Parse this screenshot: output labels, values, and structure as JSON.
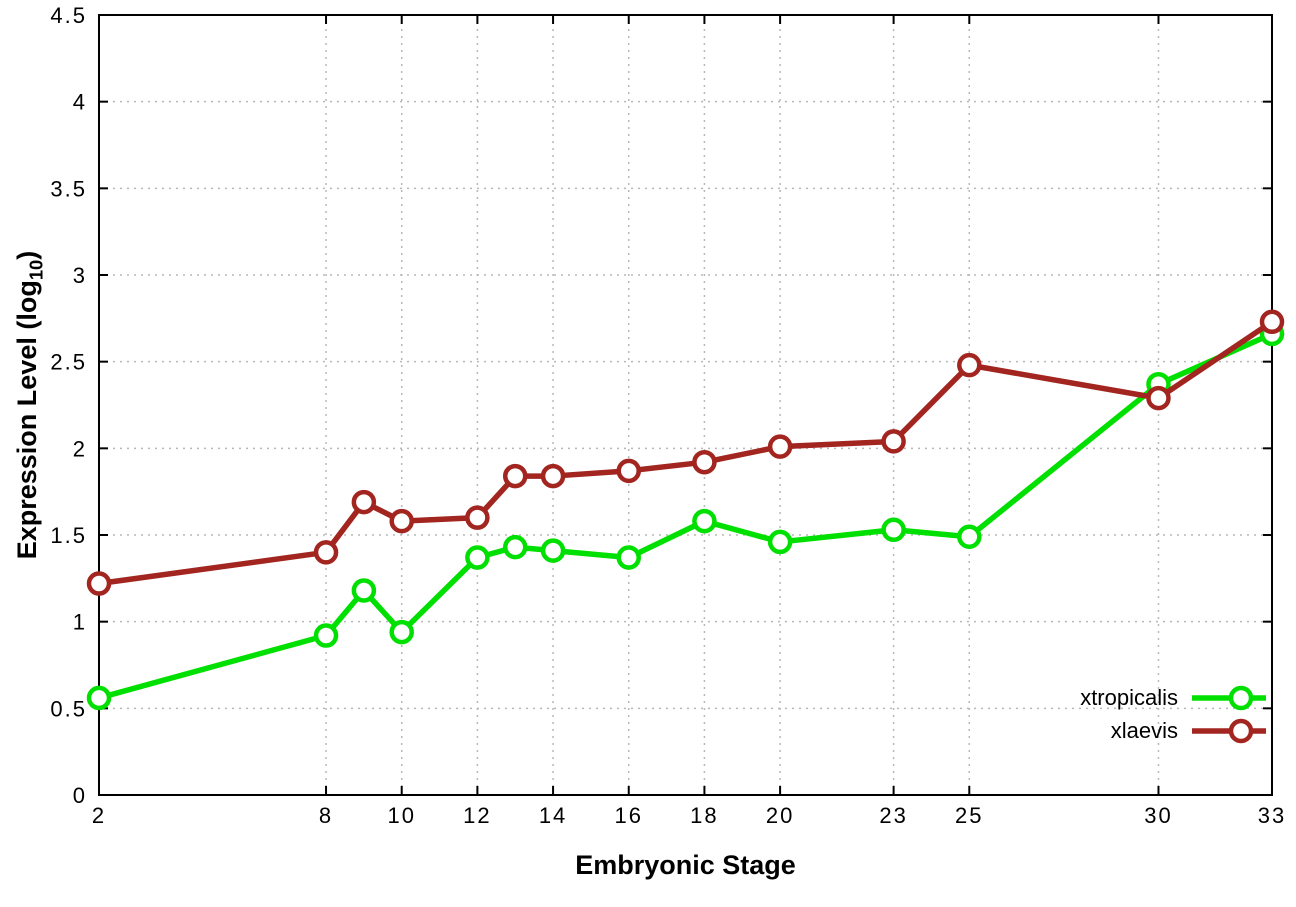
{
  "figure": {
    "background": "#ffffff",
    "border_color": "#000000",
    "grid_color": "#b8b8b8"
  },
  "chart_data": {
    "type": "line",
    "title": "",
    "xlabel": "Embryonic Stage",
    "ylabel": "Expression Level (log10)",
    "ylabel_parts": {
      "prefix": "Expression Level (log",
      "sub": "10",
      "suffix": ")"
    },
    "xlim": [
      2,
      33
    ],
    "ylim": [
      0,
      4.5
    ],
    "grid": true,
    "legend_position": "inside-bottom-right",
    "x": [
      2,
      8,
      9,
      10,
      12,
      13,
      14,
      16,
      18,
      20,
      23,
      25,
      30,
      33
    ],
    "xticks": [
      "2",
      "8",
      "10",
      "12",
      "14",
      "16",
      "18",
      "20",
      "23",
      "25",
      "30",
      "33"
    ],
    "yticks": [
      "0",
      "0.5",
      "1",
      "1.5",
      "2",
      "2.5",
      "3",
      "3.5",
      "4",
      "4.5"
    ],
    "series": [
      {
        "name": "xtropicalis",
        "color": "#00e000",
        "marker": "open-circle",
        "values": [
          0.56,
          0.92,
          1.18,
          0.94,
          1.37,
          1.43,
          1.41,
          1.37,
          1.58,
          1.46,
          1.53,
          1.49,
          2.37,
          2.66
        ]
      },
      {
        "name": "xlaevis",
        "color": "#a22520",
        "marker": "open-circle",
        "values": [
          1.22,
          1.4,
          1.69,
          1.58,
          1.6,
          1.84,
          1.84,
          1.87,
          1.92,
          2.01,
          2.04,
          2.48,
          2.29,
          2.73
        ]
      }
    ]
  }
}
